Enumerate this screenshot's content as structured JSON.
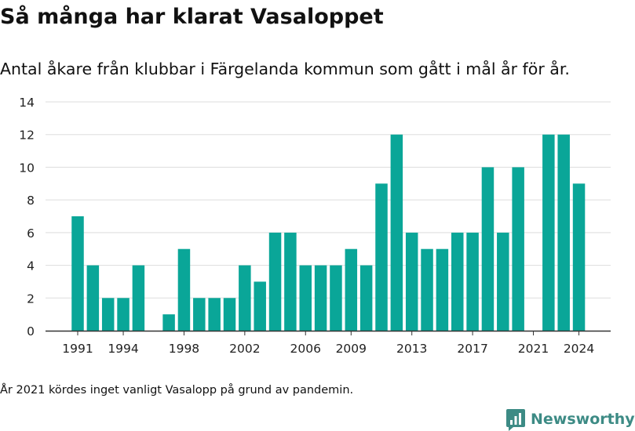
{
  "title": "Så många har klarat Vasaloppet",
  "subtitle": "Antal åkare från klubbar i Färgelanda kommun som gått i mål år för år.",
  "footnote": "År 2021 kördes inget vanligt Vasalopp på grund av pandemin.",
  "logo": {
    "text": "Newsworthy",
    "icon": "newsworthy-logo-icon",
    "color": "#3d8b85"
  },
  "colors": {
    "bar": "#0aa698",
    "grid": "#dddddd",
    "axis": "#333333",
    "text": "#222222"
  },
  "chart_data": {
    "type": "bar",
    "title": "Så många har klarat Vasaloppet",
    "subtitle": "Antal åkare från klubbar i Färgelanda kommun som gått i mål år för år.",
    "xlabel": "",
    "ylabel": "",
    "ylim": [
      0,
      14
    ],
    "yticks": [
      0,
      2,
      4,
      6,
      8,
      10,
      12,
      14
    ],
    "xticks": [
      1991,
      1994,
      1998,
      2002,
      2006,
      2009,
      2013,
      2017,
      2021,
      2024
    ],
    "grid": true,
    "legend": "none",
    "x": [
      1991,
      1992,
      1993,
      1994,
      1995,
      1996,
      1997,
      1998,
      1999,
      2000,
      2001,
      2002,
      2003,
      2004,
      2005,
      2006,
      2007,
      2008,
      2009,
      2010,
      2011,
      2012,
      2013,
      2014,
      2015,
      2016,
      2017,
      2018,
      2019,
      2020,
      2021,
      2022,
      2023,
      2024
    ],
    "values": [
      7,
      4,
      2,
      2,
      4,
      0,
      1,
      5,
      2,
      2,
      2,
      4,
      3,
      6,
      6,
      4,
      4,
      4,
      5,
      4,
      9,
      12,
      6,
      5,
      5,
      6,
      6,
      10,
      6,
      10,
      0,
      12,
      12,
      9
    ]
  }
}
